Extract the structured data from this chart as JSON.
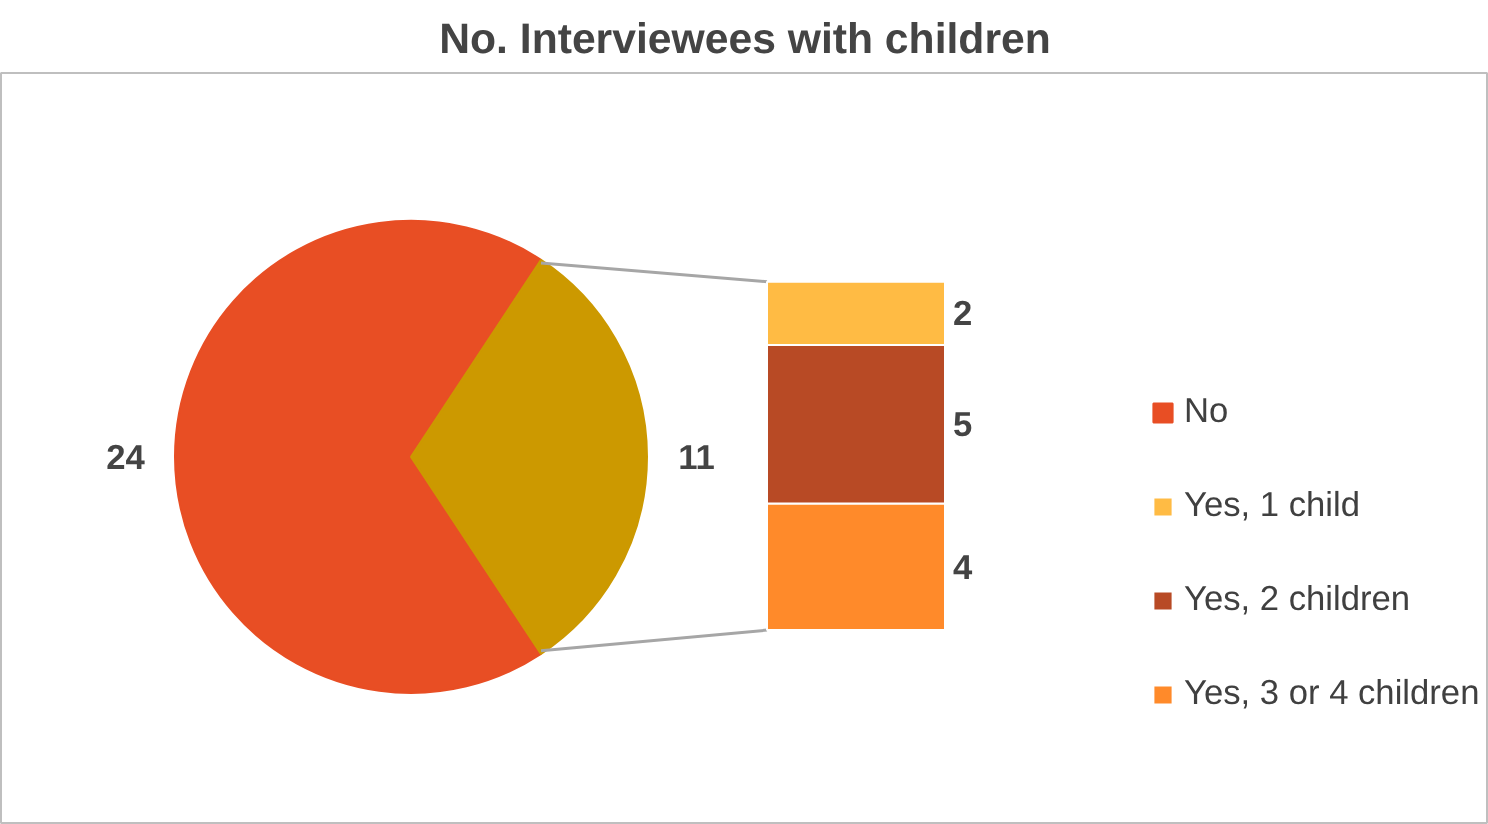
{
  "chart_data": [
    {
      "type": "pie",
      "title": "No. Interviewees with children",
      "categories": [
        "No",
        null
      ],
      "values": [
        24,
        11
      ],
      "colors": [
        "#e84e24",
        "#cc9900"
      ],
      "data_labels": true,
      "legend": "right"
    },
    {
      "type": "bar",
      "stacked": true,
      "categories": [
        null
      ],
      "data_labels": true,
      "legend": "right",
      "series": [
        {
          "name": "Yes, 3 or 4 children",
          "color": "#ff8a2a",
          "values": [
            4
          ]
        },
        {
          "name": "Yes, 2 children",
          "color": "#b84a25",
          "values": [
            5
          ]
        },
        {
          "name": "Yes, 1 child",
          "color": "#ffbb44",
          "values": [
            2
          ]
        }
      ]
    }
  ]
}
